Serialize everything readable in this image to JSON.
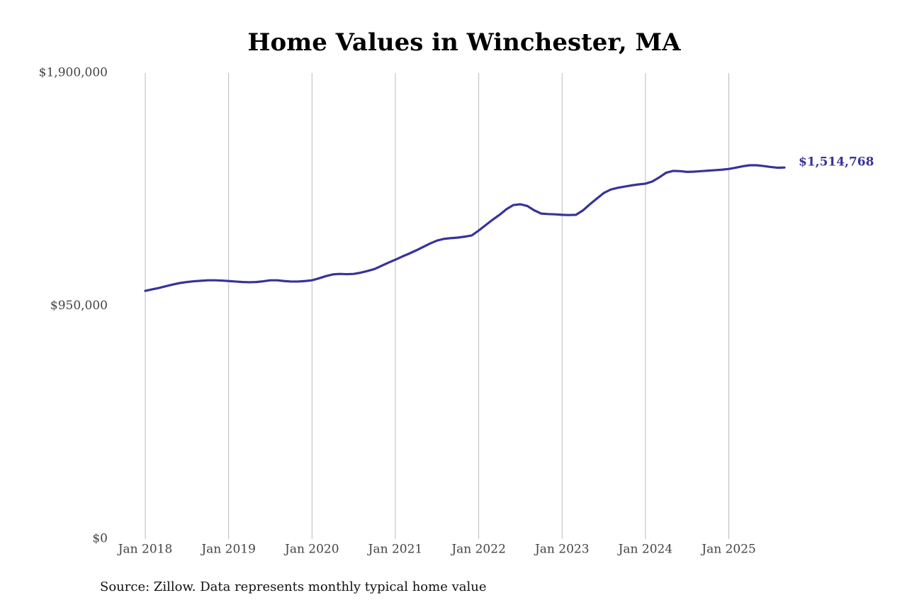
{
  "chart_data": {
    "type": "line",
    "title": "Home Values in Winchester, MA",
    "source": "Source: Zillow. Data represents monthly typical home value",
    "color": "#37339a",
    "grid": true,
    "xlim": [
      "2018-01",
      "2025-09"
    ],
    "xticks": [
      {
        "value": "2018-01",
        "label": "Jan 2018"
      },
      {
        "value": "2019-01",
        "label": "Jan 2019"
      },
      {
        "value": "2020-01",
        "label": "Jan 2020"
      },
      {
        "value": "2021-01",
        "label": "Jan 2021"
      },
      {
        "value": "2022-01",
        "label": "Jan 2022"
      },
      {
        "value": "2023-01",
        "label": "Jan 2023"
      },
      {
        "value": "2024-01",
        "label": "Jan 2024"
      },
      {
        "value": "2025-01",
        "label": "Jan 2025"
      }
    ],
    "ylim": [
      0,
      1900000
    ],
    "yticks": [
      {
        "value": 0,
        "label": "$0"
      },
      {
        "value": 950000,
        "label": "$950,000"
      },
      {
        "value": 1900000,
        "label": "$1,900,000"
      }
    ],
    "x": [
      "2018-01",
      "2018-02",
      "2018-03",
      "2018-04",
      "2018-05",
      "2018-06",
      "2018-07",
      "2018-08",
      "2018-09",
      "2018-10",
      "2018-11",
      "2018-12",
      "2019-01",
      "2019-02",
      "2019-03",
      "2019-04",
      "2019-05",
      "2019-06",
      "2019-07",
      "2019-08",
      "2019-09",
      "2019-10",
      "2019-11",
      "2019-12",
      "2020-01",
      "2020-02",
      "2020-03",
      "2020-04",
      "2020-05",
      "2020-06",
      "2020-07",
      "2020-08",
      "2020-09",
      "2020-10",
      "2020-11",
      "2020-12",
      "2021-01",
      "2021-02",
      "2021-03",
      "2021-04",
      "2021-05",
      "2021-06",
      "2021-07",
      "2021-08",
      "2021-09",
      "2021-10",
      "2021-11",
      "2021-12",
      "2022-01",
      "2022-02",
      "2022-03",
      "2022-04",
      "2022-05",
      "2022-06",
      "2022-07",
      "2022-08",
      "2022-09",
      "2022-10",
      "2022-11",
      "2022-12",
      "2023-01",
      "2023-02",
      "2023-03",
      "2023-04",
      "2023-05",
      "2023-06",
      "2023-07",
      "2023-08",
      "2023-09",
      "2023-10",
      "2023-11",
      "2023-12",
      "2024-01",
      "2024-02",
      "2024-03",
      "2024-04",
      "2024-05",
      "2024-06",
      "2024-07",
      "2024-08",
      "2024-09",
      "2024-10",
      "2024-11",
      "2024-12",
      "2025-01",
      "2025-02",
      "2025-03",
      "2025-04",
      "2025-05",
      "2025-06",
      "2025-07",
      "2025-08",
      "2025-09"
    ],
    "values": [
      1012000,
      1018000,
      1024000,
      1031000,
      1038000,
      1044000,
      1048000,
      1051000,
      1053000,
      1055000,
      1055000,
      1054000,
      1052000,
      1050000,
      1048000,
      1047000,
      1048000,
      1051000,
      1055000,
      1055000,
      1052000,
      1050000,
      1050000,
      1052000,
      1055000,
      1063000,
      1072000,
      1079000,
      1081000,
      1080000,
      1081000,
      1086000,
      1093000,
      1101000,
      1114000,
      1127000,
      1139000,
      1152000,
      1164000,
      1177000,
      1191000,
      1205000,
      1217000,
      1224000,
      1227000,
      1229000,
      1233000,
      1238000,
      1258000,
      1280000,
      1302000,
      1322000,
      1345000,
      1362000,
      1365000,
      1358000,
      1340000,
      1327000,
      1325000,
      1324000,
      1322000,
      1321000,
      1322000,
      1340000,
      1365000,
      1388000,
      1411000,
      1425000,
      1432000,
      1437000,
      1442000,
      1446000,
      1449000,
      1458000,
      1475000,
      1494000,
      1501000,
      1500000,
      1497000,
      1498000,
      1500000,
      1502000,
      1504000,
      1506000,
      1509000,
      1514000,
      1520000,
      1524000,
      1524000,
      1521000,
      1517000,
      1514000,
      1514768
    ],
    "value_labels": [
      null,
      null,
      null,
      null,
      null,
      null,
      null,
      null,
      null,
      null,
      null,
      null,
      null,
      null,
      null,
      null,
      null,
      null,
      null,
      null,
      null,
      null,
      null,
      null,
      null,
      null,
      null,
      null,
      null,
      null,
      null,
      null,
      null,
      null,
      null,
      null,
      null,
      null,
      null,
      null,
      null,
      null,
      null,
      null,
      null,
      null,
      null,
      null,
      null,
      null,
      null,
      null,
      null,
      null,
      null,
      null,
      null,
      null,
      null,
      null,
      null,
      null,
      null,
      null,
      null,
      null,
      null,
      null,
      null,
      null,
      null,
      null,
      null,
      null,
      null,
      null,
      null,
      null,
      null,
      null,
      null,
      null,
      null,
      null,
      null,
      null,
      null,
      null,
      null,
      null,
      null,
      null,
      "$1,514,768"
    ]
  }
}
